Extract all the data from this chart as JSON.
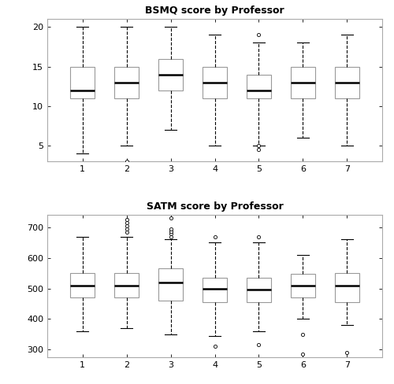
{
  "title1": "BSMQ score by Professor",
  "title2": "SATM score by Professor",
  "professors": [
    1,
    2,
    3,
    4,
    5,
    6,
    7
  ],
  "bsmq": {
    "1": {
      "q1": 11,
      "median": 12,
      "q3": 15,
      "whisker_low": 4,
      "whisker_high": 20,
      "outliers": []
    },
    "2": {
      "q1": 11,
      "median": 13,
      "q3": 15,
      "whisker_low": 5,
      "whisker_high": 20,
      "outliers": [
        3
      ]
    },
    "3": {
      "q1": 12,
      "median": 14,
      "q3": 16,
      "whisker_low": 7,
      "whisker_high": 20,
      "outliers": []
    },
    "4": {
      "q1": 11,
      "median": 13,
      "q3": 15,
      "whisker_low": 5,
      "whisker_high": 19,
      "outliers": []
    },
    "5": {
      "q1": 11,
      "median": 12,
      "q3": 14,
      "whisker_low": 5,
      "whisker_high": 18,
      "outliers": [
        4.5,
        5.0,
        19
      ]
    },
    "6": {
      "q1": 11,
      "median": 13,
      "q3": 15,
      "whisker_low": 6,
      "whisker_high": 18,
      "outliers": []
    },
    "7": {
      "q1": 11,
      "median": 13,
      "q3": 15,
      "whisker_low": 5,
      "whisker_high": 19,
      "outliers": []
    }
  },
  "satm": {
    "1": {
      "q1": 470,
      "median": 510,
      "q3": 550,
      "whisker_low": 360,
      "whisker_high": 670,
      "outliers": []
    },
    "2": {
      "q1": 470,
      "median": 510,
      "q3": 550,
      "whisker_low": 370,
      "whisker_high": 670,
      "outliers": [
        685,
        695,
        705,
        715,
        725
      ]
    },
    "3": {
      "q1": 460,
      "median": 520,
      "q3": 565,
      "whisker_low": 350,
      "whisker_high": 660,
      "outliers": [
        670,
        678,
        686,
        694,
        732
      ]
    },
    "4": {
      "q1": 455,
      "median": 500,
      "q3": 535,
      "whisker_low": 345,
      "whisker_high": 650,
      "outliers": [
        310,
        670
      ]
    },
    "5": {
      "q1": 455,
      "median": 495,
      "q3": 535,
      "whisker_low": 360,
      "whisker_high": 650,
      "outliers": [
        315,
        670
      ]
    },
    "6": {
      "q1": 470,
      "median": 510,
      "q3": 548,
      "whisker_low": 400,
      "whisker_high": 610,
      "outliers": [
        350,
        285
      ]
    },
    "7": {
      "q1": 455,
      "median": 510,
      "q3": 550,
      "whisker_low": 380,
      "whisker_high": 660,
      "outliers": [
        290
      ]
    }
  },
  "bsmq_ylim": [
    3,
    21
  ],
  "satm_ylim": [
    275,
    740
  ],
  "bsmq_yticks": [
    5,
    10,
    15,
    20
  ],
  "satm_yticks": [
    300,
    400,
    500,
    600,
    700
  ],
  "box_width": 0.55,
  "box_color": "white",
  "median_color": "black",
  "whisker_color": "black",
  "box_edge_color": "#999999",
  "flier_marker_size": 3,
  "background_color": "white",
  "fig_bg_color": "white",
  "spine_color": "#aaaaaa",
  "tick_label_fontsize": 8,
  "title_fontsize": 9
}
